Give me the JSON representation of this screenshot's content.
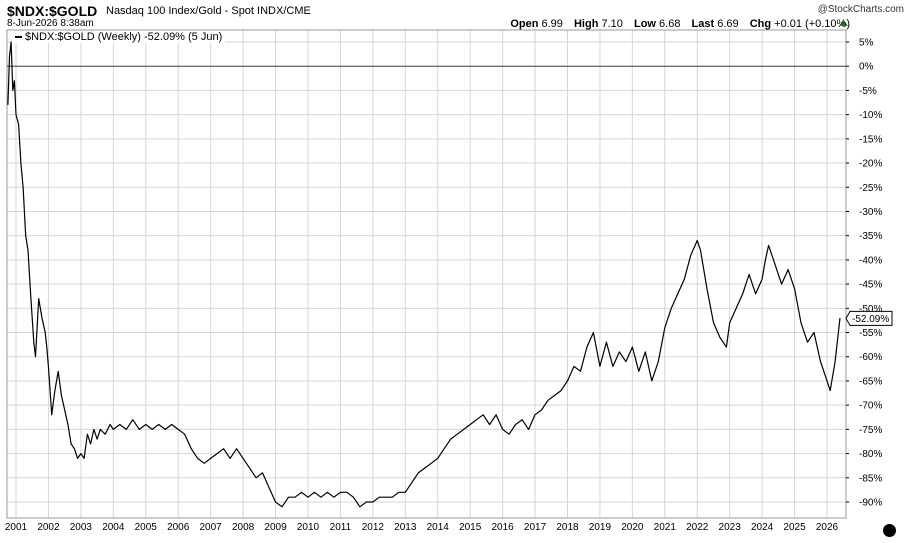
{
  "header": {
    "symbol": "$NDX:$GOLD",
    "name": "Nasdaq 100 Index/Gold - Spot  INDX/CME",
    "datetime": "8-Jun-2026 8:38am",
    "brand": "@StockCharts.com",
    "open_label": "Open",
    "open_value": "6.99",
    "high_label": "High",
    "high_value": "7.10",
    "low_label": "Low",
    "low_value": "6.68",
    "last_label": "Last",
    "last_value": "6.69",
    "chg_label": "Chg",
    "chg_value": "+0.01 (+0.10%)"
  },
  "legend": {
    "label": "$NDX:$GOLD (Weekly) -52.09% (5 Jun)"
  },
  "colors": {
    "line": "#000000",
    "grid": "#d6d6d6",
    "zero_line": "#444444",
    "up_arrow": "#1a9e3a"
  },
  "chart_data": {
    "type": "line",
    "title": "$NDX:$GOLD Nasdaq 100 Index/Gold - Spot",
    "xlim": [
      2000.7,
      2026.75
    ],
    "ylim": [
      -93,
      6
    ],
    "y_ticks": [
      5,
      0,
      -5,
      -10,
      -15,
      -20,
      -25,
      -30,
      -35,
      -40,
      -45,
      -50,
      -55,
      -60,
      -65,
      -70,
      -75,
      -80,
      -85,
      -90
    ],
    "x_ticks": [
      "2001",
      "2002",
      "2003",
      "2004",
      "2005",
      "2006",
      "2007",
      "2008",
      "2009",
      "2010",
      "2011",
      "2012",
      "2013",
      "2014",
      "2015",
      "2016",
      "2017",
      "2018",
      "2019",
      "2020",
      "2021",
      "2022",
      "2023",
      "2024",
      "2025",
      "2026"
    ],
    "last_value_label": "-52.09%",
    "grid": true,
    "series": [
      {
        "points": [
          [
            2000.75,
            -8
          ],
          [
            2000.8,
            2
          ],
          [
            2000.85,
            5
          ],
          [
            2000.9,
            -5
          ],
          [
            2000.95,
            -3
          ],
          [
            2001.0,
            -10
          ],
          [
            2001.08,
            -12
          ],
          [
            2001.15,
            -20
          ],
          [
            2001.22,
            -25
          ],
          [
            2001.3,
            -35
          ],
          [
            2001.37,
            -38
          ],
          [
            2001.45,
            -47
          ],
          [
            2001.5,
            -52
          ],
          [
            2001.55,
            -57
          ],
          [
            2001.6,
            -60
          ],
          [
            2001.7,
            -48
          ],
          [
            2001.8,
            -52
          ],
          [
            2001.9,
            -55
          ],
          [
            2001.95,
            -58
          ],
          [
            2002.0,
            -62
          ],
          [
            2002.05,
            -67
          ],
          [
            2002.1,
            -72
          ],
          [
            2002.2,
            -67
          ],
          [
            2002.3,
            -63
          ],
          [
            2002.4,
            -68
          ],
          [
            2002.5,
            -71
          ],
          [
            2002.6,
            -74
          ],
          [
            2002.7,
            -78
          ],
          [
            2002.8,
            -79
          ],
          [
            2002.9,
            -81
          ],
          [
            2003.0,
            -80
          ],
          [
            2003.1,
            -81
          ],
          [
            2003.2,
            -76
          ],
          [
            2003.3,
            -78
          ],
          [
            2003.4,
            -75
          ],
          [
            2003.5,
            -77
          ],
          [
            2003.6,
            -75
          ],
          [
            2003.75,
            -76
          ],
          [
            2003.9,
            -74
          ],
          [
            2004.0,
            -75
          ],
          [
            2004.2,
            -74
          ],
          [
            2004.4,
            -75
          ],
          [
            2004.6,
            -73
          ],
          [
            2004.8,
            -75
          ],
          [
            2005.0,
            -74
          ],
          [
            2005.2,
            -75
          ],
          [
            2005.4,
            -74
          ],
          [
            2005.6,
            -75
          ],
          [
            2005.8,
            -74
          ],
          [
            2006.0,
            -75
          ],
          [
            2006.2,
            -76
          ],
          [
            2006.4,
            -79
          ],
          [
            2006.6,
            -81
          ],
          [
            2006.8,
            -82
          ],
          [
            2007.0,
            -81
          ],
          [
            2007.2,
            -80
          ],
          [
            2007.4,
            -79
          ],
          [
            2007.6,
            -81
          ],
          [
            2007.8,
            -79
          ],
          [
            2008.0,
            -81
          ],
          [
            2008.2,
            -83
          ],
          [
            2008.4,
            -85
          ],
          [
            2008.6,
            -84
          ],
          [
            2008.8,
            -87
          ],
          [
            2009.0,
            -90
          ],
          [
            2009.2,
            -91
          ],
          [
            2009.4,
            -89
          ],
          [
            2009.6,
            -89
          ],
          [
            2009.8,
            -88
          ],
          [
            2010.0,
            -89
          ],
          [
            2010.2,
            -88
          ],
          [
            2010.4,
            -89
          ],
          [
            2010.6,
            -88
          ],
          [
            2010.8,
            -89
          ],
          [
            2011.0,
            -88
          ],
          [
            2011.2,
            -88
          ],
          [
            2011.4,
            -89
          ],
          [
            2011.6,
            -91
          ],
          [
            2011.8,
            -90
          ],
          [
            2012.0,
            -90
          ],
          [
            2012.2,
            -89
          ],
          [
            2012.4,
            -89
          ],
          [
            2012.6,
            -89
          ],
          [
            2012.8,
            -88
          ],
          [
            2013.0,
            -88
          ],
          [
            2013.2,
            -86
          ],
          [
            2013.4,
            -84
          ],
          [
            2013.6,
            -83
          ],
          [
            2013.8,
            -82
          ],
          [
            2014.0,
            -81
          ],
          [
            2014.2,
            -79
          ],
          [
            2014.4,
            -77
          ],
          [
            2014.6,
            -76
          ],
          [
            2014.8,
            -75
          ],
          [
            2015.0,
            -74
          ],
          [
            2015.2,
            -73
          ],
          [
            2015.4,
            -72
          ],
          [
            2015.6,
            -74
          ],
          [
            2015.8,
            -72
          ],
          [
            2016.0,
            -75
          ],
          [
            2016.2,
            -76
          ],
          [
            2016.4,
            -74
          ],
          [
            2016.6,
            -73
          ],
          [
            2016.8,
            -75
          ],
          [
            2017.0,
            -72
          ],
          [
            2017.2,
            -71
          ],
          [
            2017.4,
            -69
          ],
          [
            2017.6,
            -68
          ],
          [
            2017.8,
            -67
          ],
          [
            2018.0,
            -65
          ],
          [
            2018.2,
            -62
          ],
          [
            2018.4,
            -63
          ],
          [
            2018.6,
            -58
          ],
          [
            2018.8,
            -55
          ],
          [
            2019.0,
            -62
          ],
          [
            2019.2,
            -57
          ],
          [
            2019.4,
            -62
          ],
          [
            2019.6,
            -59
          ],
          [
            2019.8,
            -61
          ],
          [
            2020.0,
            -58
          ],
          [
            2020.2,
            -63
          ],
          [
            2020.4,
            -59
          ],
          [
            2020.6,
            -65
          ],
          [
            2020.8,
            -61
          ],
          [
            2021.0,
            -54
          ],
          [
            2021.2,
            -50
          ],
          [
            2021.4,
            -47
          ],
          [
            2021.6,
            -44
          ],
          [
            2021.8,
            -39
          ],
          [
            2022.0,
            -36
          ],
          [
            2022.1,
            -38
          ],
          [
            2022.3,
            -46
          ],
          [
            2022.5,
            -53
          ],
          [
            2022.7,
            -56
          ],
          [
            2022.9,
            -58
          ],
          [
            2023.0,
            -53
          ],
          [
            2023.2,
            -50
          ],
          [
            2023.4,
            -47
          ],
          [
            2023.6,
            -43
          ],
          [
            2023.8,
            -47
          ],
          [
            2024.0,
            -44
          ],
          [
            2024.1,
            -40
          ],
          [
            2024.2,
            -37
          ],
          [
            2024.4,
            -41
          ],
          [
            2024.6,
            -45
          ],
          [
            2024.8,
            -42
          ],
          [
            2025.0,
            -46
          ],
          [
            2025.2,
            -53
          ],
          [
            2025.4,
            -57
          ],
          [
            2025.6,
            -55
          ],
          [
            2025.8,
            -61
          ],
          [
            2025.95,
            -64
          ],
          [
            2026.1,
            -67
          ],
          [
            2026.25,
            -61
          ],
          [
            2026.4,
            -52
          ]
        ]
      }
    ]
  }
}
